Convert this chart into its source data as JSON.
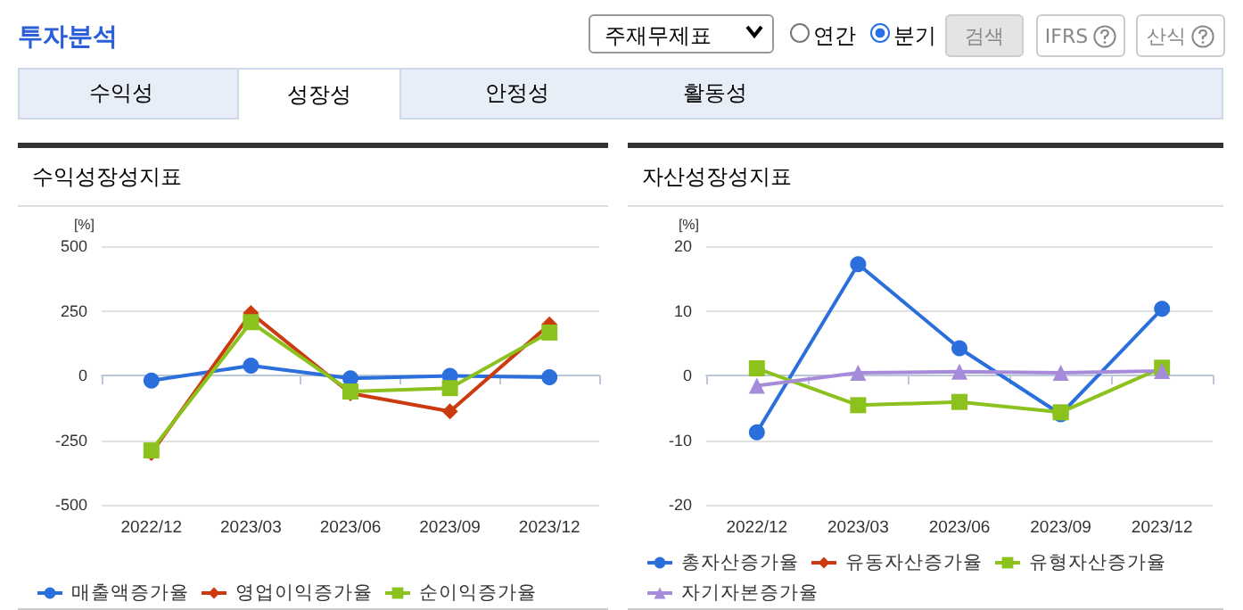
{
  "chart_data": [
    {
      "type": "other",
      "title": "투자분석",
      "annotations": [
        "주재무제표",
        "연간",
        "분기",
        "검색",
        "IFRS",
        "산식",
        "수익성",
        "성장성",
        "안정성",
        "활동성"
      ]
    },
    {
      "type": "line",
      "title": "수익성장성지표",
      "ylabel": "[%]",
      "categories": [
        "2022/12",
        "2023/03",
        "2023/06",
        "2023/09",
        "2023/12"
      ],
      "ylim": [
        -500,
        500
      ],
      "yticks": [
        -500,
        -250,
        0,
        250,
        500
      ],
      "grid": "y",
      "legend": "bottom",
      "series": [
        {
          "name": "매출액증가율",
          "color": "#2a6fdb",
          "marker": "circle",
          "values": [
            -20,
            38,
            -11,
            -2,
            -7
          ]
        },
        {
          "name": "영업이익증가율",
          "color": "#cc3a0f",
          "marker": "diamond",
          "values": [
            -300,
            241,
            -69,
            -139,
            197
          ]
        },
        {
          "name": "순이익증가율",
          "color": "#8cc21e",
          "marker": "square",
          "values": [
            -290,
            206,
            -62,
            -49,
            166
          ]
        }
      ]
    },
    {
      "type": "line",
      "title": "자산성장성지표",
      "ylabel": "[%]",
      "categories": [
        "2022/12",
        "2023/03",
        "2023/06",
        "2023/09",
        "2023/12"
      ],
      "ylim": [
        -20,
        20
      ],
      "yticks": [
        -20,
        -10,
        0,
        10,
        20
      ],
      "grid": "y",
      "legend": "bottom",
      "series": [
        {
          "name": "총자산증가율",
          "color": "#2a6fdb",
          "marker": "circle",
          "values": [
            -8.8,
            17.2,
            4.2,
            -6.0,
            10.3
          ]
        },
        {
          "name": "유동자산증가율",
          "color": "#cc3a0f",
          "marker": "diamond",
          "values": [
            null,
            null,
            null,
            null,
            null
          ]
        },
        {
          "name": "유형자산증가율",
          "color": "#8cc21e",
          "marker": "square",
          "values": [
            1.1,
            -4.6,
            -4.1,
            -5.7,
            1.2
          ]
        },
        {
          "name": "자기자본증가율",
          "color": "#a78bdb",
          "marker": "triangle",
          "values": [
            -1.6,
            0.4,
            0.6,
            0.4,
            0.7
          ]
        }
      ]
    }
  ]
}
